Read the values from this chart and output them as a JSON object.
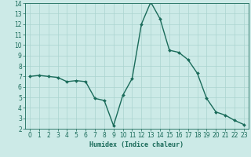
{
  "x": [
    0,
    1,
    2,
    3,
    4,
    5,
    6,
    7,
    8,
    9,
    10,
    11,
    12,
    13,
    14,
    15,
    16,
    17,
    18,
    19,
    20,
    21,
    22,
    23
  ],
  "y": [
    7.0,
    7.1,
    7.0,
    6.9,
    6.5,
    6.6,
    6.5,
    4.9,
    4.7,
    2.3,
    5.2,
    6.8,
    12.0,
    14.1,
    12.5,
    9.5,
    9.3,
    8.6,
    7.3,
    4.9,
    3.6,
    3.3,
    2.8,
    2.4
  ],
  "line_color": "#1a6b5a",
  "marker": "D",
  "marker_size": 2.0,
  "bg_color": "#cceae7",
  "grid_color": "#aad4d0",
  "xlabel": "Humidex (Indice chaleur)",
  "xlim": [
    -0.5,
    23.5
  ],
  "ylim": [
    2,
    14
  ],
  "yticks": [
    2,
    3,
    4,
    5,
    6,
    7,
    8,
    9,
    10,
    11,
    12,
    13,
    14
  ],
  "xticks": [
    0,
    1,
    2,
    3,
    4,
    5,
    6,
    7,
    8,
    9,
    10,
    11,
    12,
    13,
    14,
    15,
    16,
    17,
    18,
    19,
    20,
    21,
    22,
    23
  ],
  "axis_fontsize": 6.0,
  "tick_fontsize": 5.5,
  "linewidth": 1.0
}
